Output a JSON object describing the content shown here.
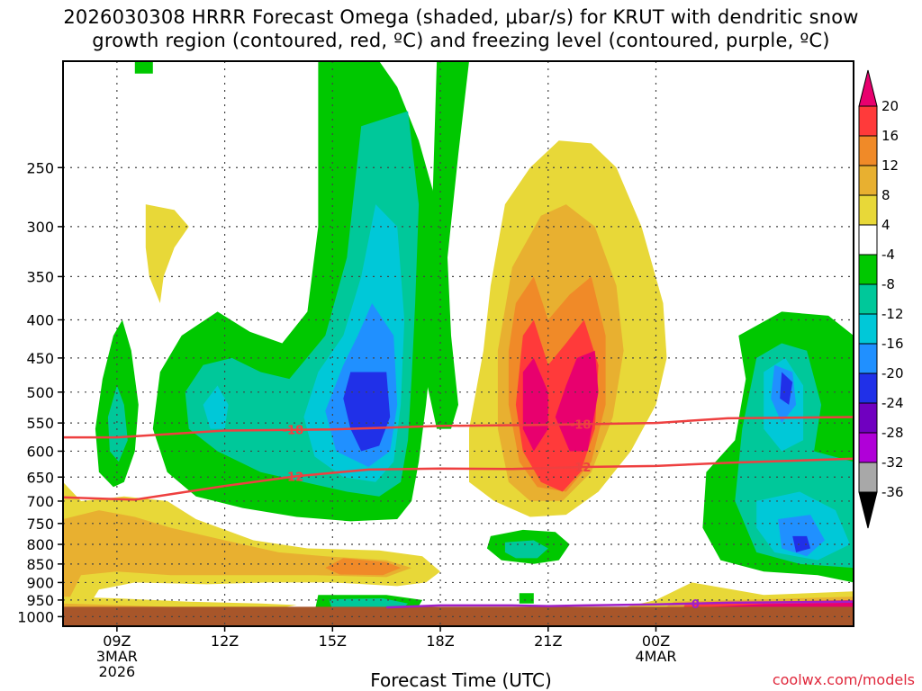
{
  "title": {
    "line1": "2026030308 HRRR Forecast Omega (shaded, μbar/s) for KRUT with dendritic snow",
    "line2": "growth region (contoured, red, ºC) and freezing level (contoured, purple, ºC)"
  },
  "credit": "coolwx.com/models",
  "chart_data": {
    "type": "heatmap",
    "title": "2026030308 HRRR Forecast Omega (shaded, μbar/s) for KRUT with dendritic snow growth region (contoured, red, ºC) and freezing level (contoured, purple, ºC)",
    "xlabel": "Forecast Time (UTC)",
    "ylabel": "",
    "x_range_hours": [
      7.5,
      29.5
    ],
    "y_range_hPa": [
      1030,
      180
    ],
    "y_ticks": [
      250,
      300,
      350,
      400,
      450,
      500,
      550,
      600,
      650,
      700,
      750,
      800,
      850,
      900,
      950,
      1000
    ],
    "x_ticks": [
      {
        "hour": 9,
        "lines": [
          "09Z",
          "3MAR",
          "2026"
        ]
      },
      {
        "hour": 12,
        "lines": [
          "12Z"
        ]
      },
      {
        "hour": 15,
        "lines": [
          "15Z"
        ]
      },
      {
        "hour": 18,
        "lines": [
          "18Z"
        ]
      },
      {
        "hour": 21,
        "lines": [
          "21Z"
        ]
      },
      {
        "hour": 24,
        "lines": [
          "00Z",
          "4MAR"
        ]
      }
    ],
    "colorbar": {
      "levels": [
        20,
        16,
        12,
        8,
        4,
        -4,
        -8,
        -12,
        -16,
        -20,
        -24,
        -28,
        -32,
        -36
      ],
      "colors": [
        "#e8006e",
        "#ff3a3a",
        "#f08a28",
        "#e8b030",
        "#e8d838",
        "#ffffff",
        "#00c800",
        "#00c89a",
        "#00c8d8",
        "#2090ff",
        "#2030e8",
        "#7000c0",
        "#b000d8",
        "#a8a8a8",
        "#000000"
      ]
    },
    "contours": [
      {
        "name": "dendritic -18",
        "color": "#ee4040",
        "label": "-18",
        "points": [
          [
            7.5,
            575
          ],
          [
            9,
            575
          ],
          [
            12,
            563
          ],
          [
            15,
            561
          ],
          [
            18,
            555
          ],
          [
            21,
            553
          ],
          [
            24,
            550
          ],
          [
            26,
            542
          ],
          [
            29.5,
            540
          ]
        ]
      },
      {
        "name": "dendritic -12",
        "color": "#ee4040",
        "label": "-12",
        "points": [
          [
            7.5,
            692
          ],
          [
            9.5,
            697
          ],
          [
            12,
            668
          ],
          [
            14,
            648
          ],
          [
            16,
            635
          ],
          [
            18,
            633
          ],
          [
            20,
            634
          ],
          [
            22,
            630
          ],
          [
            24,
            628
          ],
          [
            26,
            622
          ],
          [
            29.5,
            614
          ]
        ]
      },
      {
        "name": "freezing level 0",
        "color": "#a020c8",
        "label": "0",
        "points": [
          [
            16.5,
            972
          ],
          [
            18,
            966
          ],
          [
            20,
            966
          ],
          [
            21,
            968
          ],
          [
            22,
            966
          ],
          [
            24,
            963
          ],
          [
            26,
            958
          ],
          [
            29.5,
            955
          ]
        ]
      }
    ]
  }
}
